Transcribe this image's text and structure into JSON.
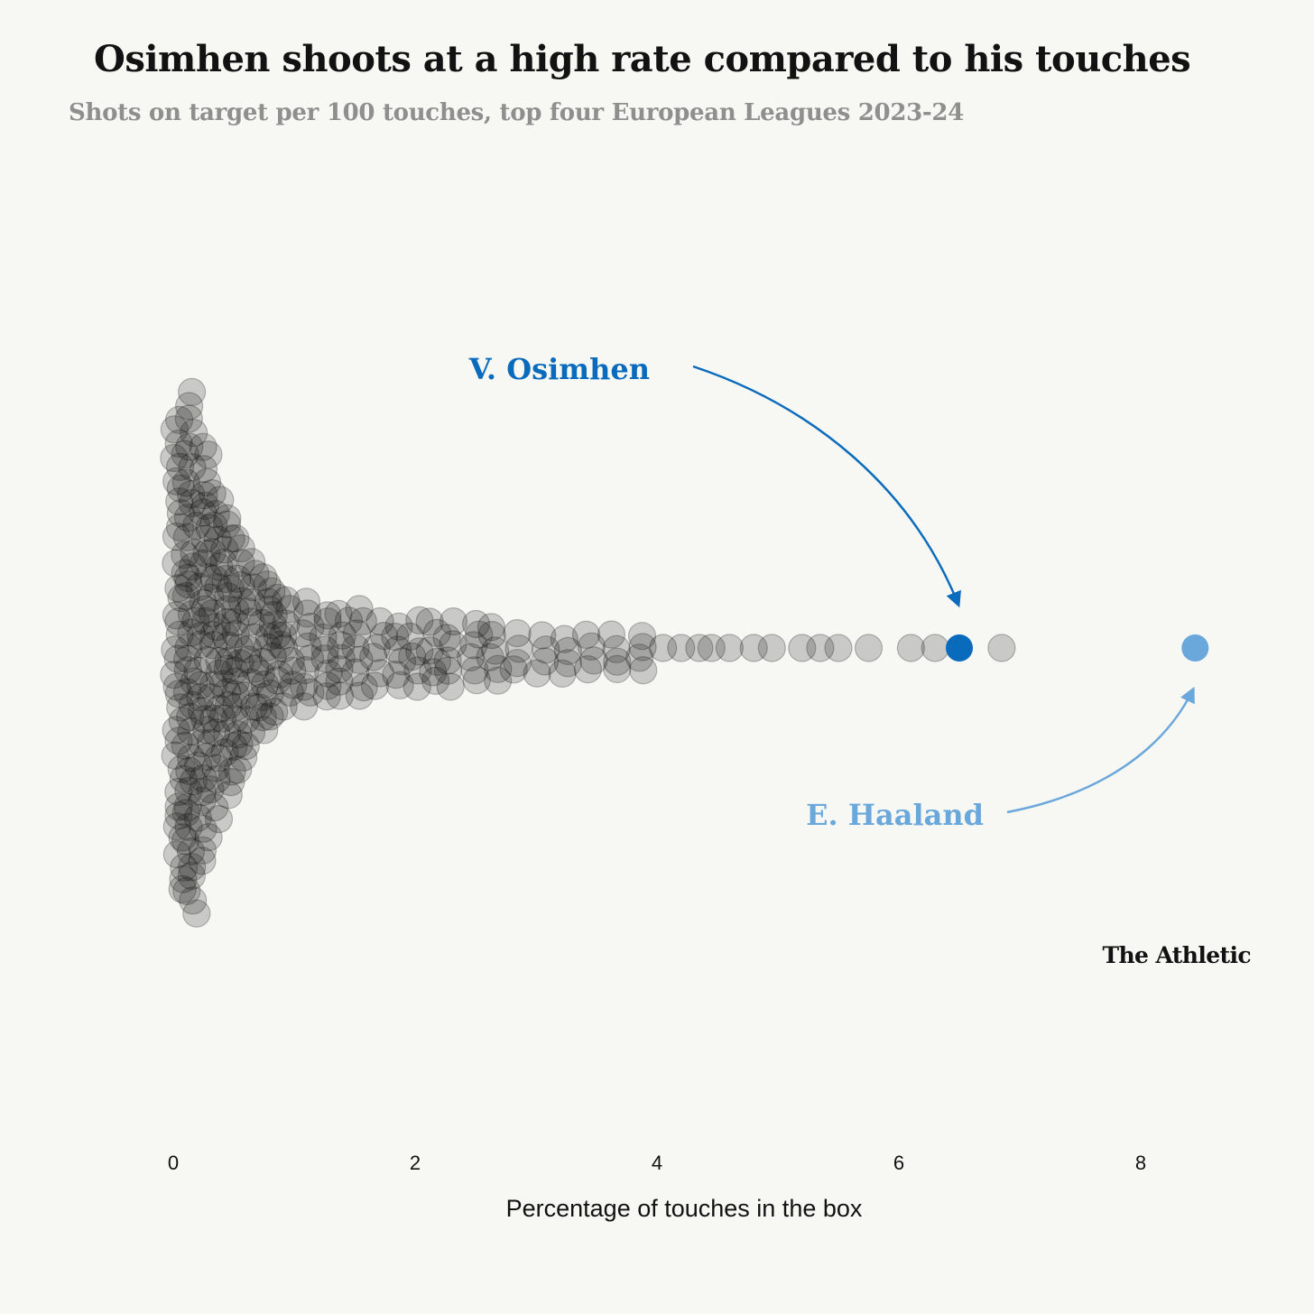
{
  "header": {
    "title": "Osimhen shoots at a high rate compared to his touches",
    "subtitle": "Shots on target per 100 touches, top four European Leagues 2023-24"
  },
  "chart_data": {
    "type": "scatter",
    "subtype": "beeswarm",
    "xlabel": "Percentage of touches in the box",
    "xlim": [
      0,
      9
    ],
    "xticks": [
      0,
      2,
      4,
      6,
      8
    ],
    "grid": false,
    "colors": {
      "players": "#111111",
      "osimhen": "#0a6bbd",
      "haaland": "#6aa7da",
      "background": "#f7f7f4"
    },
    "highlighted": [
      {
        "name": "V. Osimhen",
        "x": 6.5
      },
      {
        "name": "E. Haaland",
        "x": 8.45
      }
    ],
    "outliers": [
      4.05,
      4.2,
      4.35,
      4.45,
      4.6,
      4.8,
      4.95,
      5.2,
      5.35,
      5.5,
      5.75,
      6.1,
      6.3,
      6.85
    ],
    "density_bins": [
      {
        "x": 0.05,
        "count": 20
      },
      {
        "x": 0.15,
        "count": 22
      },
      {
        "x": 0.25,
        "count": 18
      },
      {
        "x": 0.35,
        "count": 14
      },
      {
        "x": 0.45,
        "count": 12
      },
      {
        "x": 0.55,
        "count": 10
      },
      {
        "x": 0.65,
        "count": 8
      },
      {
        "x": 0.75,
        "count": 7
      },
      {
        "x": 0.85,
        "count": 6
      },
      {
        "x": 0.95,
        "count": 5
      },
      {
        "x": 1.1,
        "count": 5
      },
      {
        "x": 1.25,
        "count": 4
      },
      {
        "x": 1.4,
        "count": 4
      },
      {
        "x": 1.55,
        "count": 4
      },
      {
        "x": 1.7,
        "count": 3
      },
      {
        "x": 1.85,
        "count": 3
      },
      {
        "x": 2.0,
        "count": 3
      },
      {
        "x": 2.15,
        "count": 3
      },
      {
        "x": 2.3,
        "count": 3
      },
      {
        "x": 2.5,
        "count": 3
      },
      {
        "x": 2.65,
        "count": 3
      },
      {
        "x": 2.85,
        "count": 2
      },
      {
        "x": 3.05,
        "count": 2
      },
      {
        "x": 3.25,
        "count": 2
      },
      {
        "x": 3.45,
        "count": 2
      },
      {
        "x": 3.65,
        "count": 2
      },
      {
        "x": 3.85,
        "count": 2
      }
    ]
  },
  "footer": {
    "brand": "The Athletic"
  }
}
